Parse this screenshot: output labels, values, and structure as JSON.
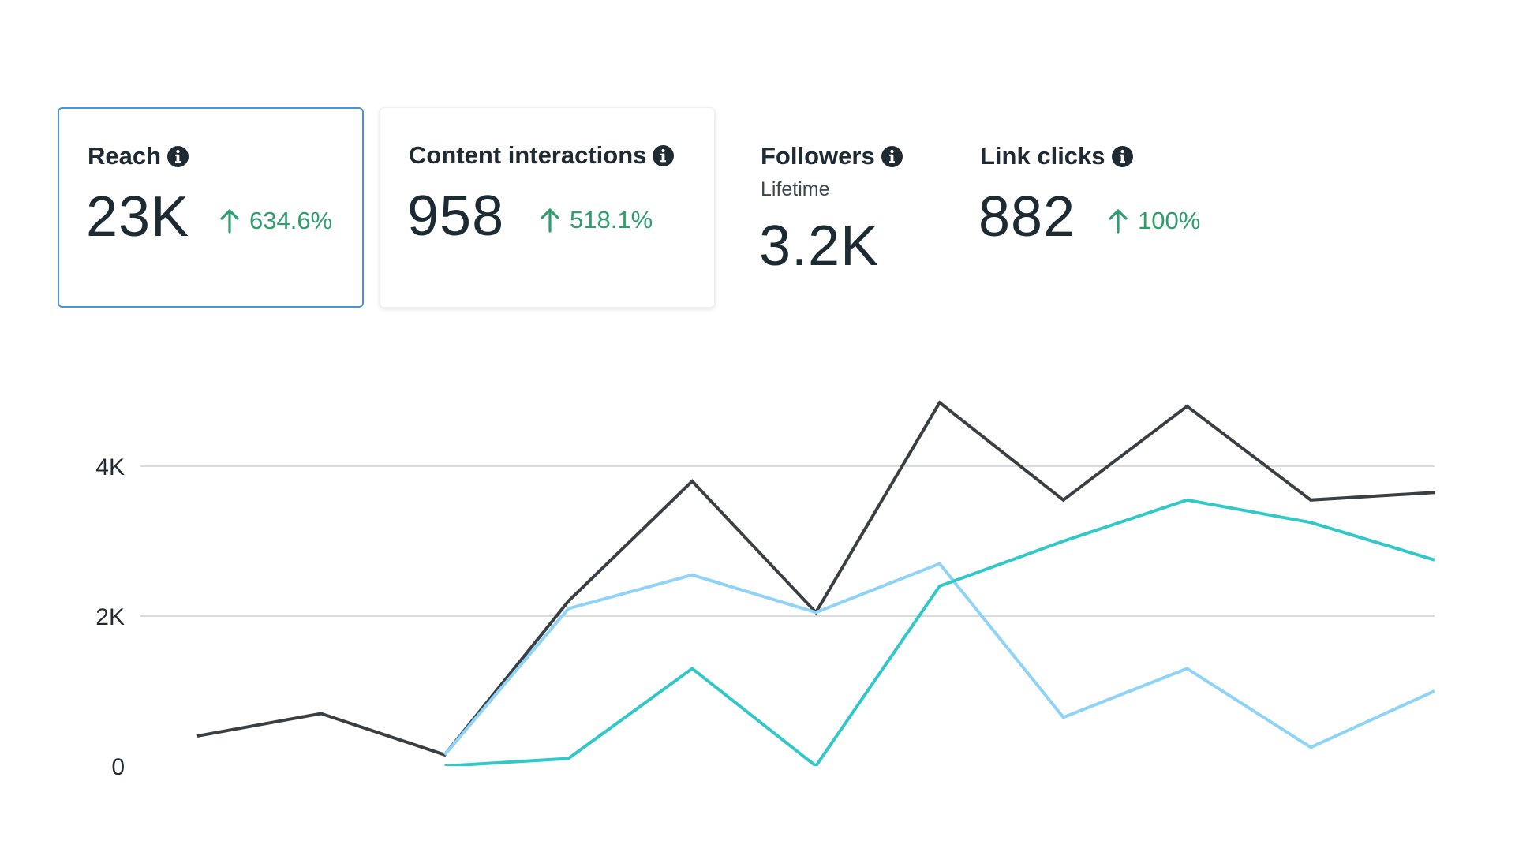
{
  "metrics": [
    {
      "title": "Reach",
      "value": "23K",
      "change": "634.6%",
      "change_direction": "up",
      "selected": true
    },
    {
      "title": "Content interactions",
      "value": "958",
      "change": "518.1%",
      "change_direction": "up",
      "selected": false
    },
    {
      "title": "Followers",
      "subtitle": "Lifetime",
      "value": "3.2K",
      "selected": false
    },
    {
      "title": "Link clicks",
      "value": "882",
      "change": "100%",
      "change_direction": "up",
      "selected": false
    }
  ],
  "icons": {
    "info": "info-icon",
    "change": "arrow-up-icon"
  },
  "colors": {
    "selected_border": "#4a95d6",
    "positive": "#2e9e6e",
    "series_total": "#3a3f44",
    "series_light": "#8fd3f7",
    "series_teal": "#33c8c8",
    "grid": "#d9dcdf"
  },
  "chart_data": {
    "type": "line",
    "y_tick_labels": [
      "0",
      "2K",
      "4K"
    ],
    "y_ticks": [
      0,
      2000,
      4000
    ],
    "ylim": [
      0,
      4800
    ],
    "grid": true,
    "x": [
      1,
      2,
      3,
      4,
      5,
      6,
      7,
      8,
      9,
      10,
      11
    ],
    "series": [
      {
        "color": "#3a3f44",
        "values": [
          400,
          700,
          150,
          2200,
          3800,
          2050,
          4850,
          3550,
          4800,
          3550,
          3650
        ]
      },
      {
        "color": "#8fd3f7",
        "values": [
          null,
          null,
          150,
          2100,
          2550,
          2050,
          2700,
          650,
          1300,
          250,
          1000
        ]
      },
      {
        "color": "#33c8c8",
        "values": [
          null,
          null,
          0,
          100,
          1300,
          0,
          2400,
          3000,
          3550,
          3250,
          2750
        ]
      }
    ]
  }
}
